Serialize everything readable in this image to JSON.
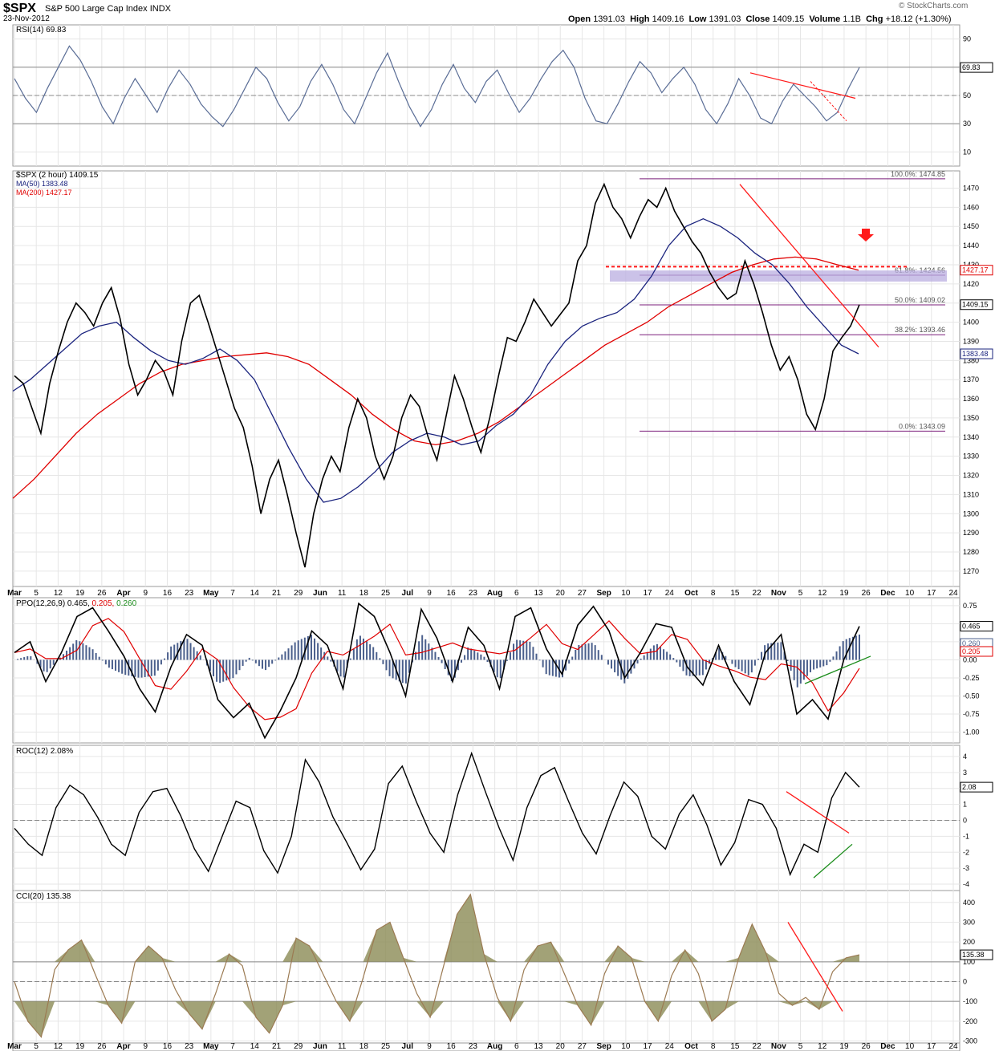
{
  "header": {
    "symbol": "$SPX",
    "name": "S&P 500 Large Cap Index",
    "exchange": "INDX",
    "date": "23-Nov-2012",
    "brand": "© StockCharts.com",
    "ohlc": {
      "open_label": "Open",
      "open": "1391.03",
      "high_label": "High",
      "high": "1409.16",
      "low_label": "Low",
      "low": "1391.03",
      "close_label": "Close",
      "close": "1409.15",
      "volume_label": "Volume",
      "volume": "1.1B",
      "chg_label": "Chg",
      "chg": "+18.12 (+1.30%)"
    }
  },
  "colors": {
    "price": "#000000",
    "ma50": "#1a237e",
    "ma200": "#e00000",
    "rsi": "#5a6d96",
    "fib": "#7b1f7b",
    "fill_band": "#b9aee0",
    "histogram": "#4a5f8c",
    "cci": "#9b7a52",
    "cci_fill": "#8b8b55",
    "trend_red": "#ff1a1a",
    "trend_green": "#1a8c1a",
    "grid": "#e6e6e6"
  },
  "chart_data": [
    {
      "type": "line",
      "panel": "rsi",
      "legend": "RSI(14) 69.83",
      "series": [
        {
          "name": "RSI(14)",
          "last": 69.83,
          "values": [
            62,
            48,
            38,
            55,
            70,
            85,
            75,
            60,
            42,
            30,
            48,
            62,
            50,
            38,
            55,
            68,
            58,
            44,
            35,
            28,
            40,
            55,
            70,
            62,
            45,
            32,
            42,
            60,
            72,
            58,
            40,
            30,
            48,
            66,
            80,
            60,
            42,
            28,
            40,
            58,
            72,
            55,
            45,
            60,
            68,
            52,
            38,
            48,
            62,
            74,
            82,
            70,
            48,
            32,
            30,
            44,
            60,
            74,
            66,
            52,
            62,
            70,
            58,
            40,
            30,
            44,
            62,
            50,
            34,
            30,
            46,
            58,
            50,
            42,
            32,
            38,
            55,
            69.83
          ]
        }
      ],
      "yticks": [
        10,
        30,
        50,
        70,
        90
      ],
      "ylim": [
        0,
        100
      ],
      "guides": [
        30,
        50,
        70
      ]
    },
    {
      "type": "line",
      "panel": "price",
      "legend": [
        "$SPX (2 hour) 1409.15",
        "MA(50) 1383.48",
        "MA(200) 1427.17"
      ],
      "series": [
        {
          "name": "$SPX (2 hour)",
          "last": 1409.15,
          "values": [
            1372,
            1368,
            1355,
            1342,
            1368,
            1385,
            1400,
            1410,
            1405,
            1398,
            1410,
            1418,
            1402,
            1378,
            1362,
            1370,
            1380,
            1374,
            1362,
            1390,
            1410,
            1414,
            1400,
            1385,
            1370,
            1355,
            1345,
            1325,
            1300,
            1318,
            1328,
            1310,
            1290,
            1272,
            1300,
            1318,
            1330,
            1322,
            1345,
            1360,
            1350,
            1330,
            1318,
            1330,
            1350,
            1362,
            1356,
            1340,
            1328,
            1350,
            1372,
            1360,
            1345,
            1332,
            1350,
            1372,
            1392,
            1390,
            1400,
            1412,
            1405,
            1398,
            1404,
            1410,
            1432,
            1440,
            1462,
            1472,
            1460,
            1454,
            1444,
            1455,
            1464,
            1460,
            1470,
            1458,
            1450,
            1442,
            1436,
            1426,
            1418,
            1412,
            1415,
            1432,
            1420,
            1405,
            1388,
            1375,
            1382,
            1370,
            1352,
            1344,
            1360,
            1385,
            1392,
            1398,
            1409.15
          ]
        },
        {
          "name": "MA(50)",
          "last": 1383.48,
          "values": [
            1364,
            1370,
            1378,
            1386,
            1394,
            1398,
            1400,
            1392,
            1385,
            1380,
            1378,
            1381,
            1386,
            1380,
            1370,
            1352,
            1334,
            1318,
            1306,
            1308,
            1314,
            1322,
            1332,
            1338,
            1342,
            1340,
            1336,
            1338,
            1346,
            1352,
            1362,
            1378,
            1390,
            1398,
            1402,
            1405,
            1412,
            1424,
            1440,
            1450,
            1454,
            1450,
            1444,
            1436,
            1430,
            1420,
            1408,
            1398,
            1388,
            1383.48
          ]
        },
        {
          "name": "MA(200)",
          "last": 1427.17,
          "values": [
            1308,
            1318,
            1330,
            1342,
            1352,
            1360,
            1368,
            1374,
            1378,
            1380,
            1382,
            1383,
            1384,
            1382,
            1378,
            1370,
            1362,
            1352,
            1344,
            1338,
            1336,
            1338,
            1342,
            1348,
            1356,
            1364,
            1372,
            1380,
            1388,
            1394,
            1400,
            1408,
            1414,
            1420,
            1426,
            1430,
            1433,
            1434,
            1433,
            1430,
            1427.17
          ]
        }
      ],
      "ylim": [
        1262,
        1479
      ],
      "yticks": [
        1270,
        1280,
        1290,
        1300,
        1310,
        1320,
        1330,
        1340,
        1350,
        1360,
        1370,
        1380,
        1390,
        1400,
        1410,
        1420,
        1430,
        1440,
        1450,
        1460,
        1470
      ],
      "fib_levels": [
        {
          "label": "100.0%: 1474.85",
          "value": 1474.85
        },
        {
          "label": "61.8%: 1424.56",
          "value": 1424.56
        },
        {
          "label": "50.0%: 1409.02",
          "value": 1409.02
        },
        {
          "label": "38.2%: 1393.46",
          "value": 1393.46
        },
        {
          "label": "0.0%: 1343.09",
          "value": 1343.09
        }
      ],
      "resistance_dashed": 1429,
      "last_tags": [
        "1409.15",
        "1427.17",
        "1383.48"
      ]
    },
    {
      "type": "line",
      "panel": "ppo",
      "legend_prefix": "PPO(12,26,9)",
      "legend_values": [
        "0.465",
        "0.205",
        "0.260"
      ],
      "series": [
        {
          "name": "PPO(12,26,9)",
          "last": 0.465,
          "values": [
            0.1,
            0.25,
            -0.3,
            0.1,
            0.6,
            0.72,
            0.4,
            0.05,
            -0.4,
            -0.72,
            -0.1,
            0.35,
            0.2,
            -0.55,
            -0.8,
            -0.6,
            -1.08,
            -0.7,
            -0.25,
            0.4,
            0.2,
            -0.4,
            0.78,
            0.6,
            0.1,
            -0.5,
            0.7,
            0.3,
            -0.3,
            0.45,
            0.2,
            -0.4,
            0.6,
            0.72,
            0.15,
            -0.2,
            0.48,
            0.74,
            0.4,
            -0.25,
            0.1,
            0.5,
            0.45,
            -0.1,
            -0.35,
            0.2,
            -0.3,
            -0.62,
            0.1,
            0.35,
            -0.75,
            -0.55,
            -0.82,
            0.0,
            0.465
          ]
        },
        {
          "name": "signal",
          "last": 0.205
        },
        {
          "name": "histogram",
          "last": 0.26
        }
      ],
      "ylim": [
        -1.15,
        0.86
      ],
      "yticks": [
        -1.0,
        -0.75,
        -0.5,
        -0.25,
        0.0,
        0.25,
        0.5,
        0.75
      ],
      "ytick_labels": [
        "-1.00",
        "-0.75",
        "-0.50",
        "-0.25",
        "0.00",
        "0.25",
        "0.50",
        "0.75"
      ],
      "last_tags": [
        "0.465",
        "0.260",
        "0.205"
      ]
    },
    {
      "type": "line",
      "panel": "roc",
      "legend": "ROC(12) 2.08%",
      "series": [
        {
          "name": "ROC(12)",
          "last": 2.08,
          "values": [
            -0.5,
            -1.5,
            -2.2,
            0.8,
            2.2,
            1.6,
            0.2,
            -1.5,
            -2.2,
            0.5,
            1.8,
            2.0,
            0.3,
            -1.8,
            -3.2,
            -1.0,
            1.2,
            0.8,
            -1.9,
            -3.3,
            -1.0,
            3.8,
            2.4,
            0.2,
            -1.4,
            -3.1,
            -1.8,
            2.3,
            3.4,
            1.2,
            -0.8,
            -2.0,
            1.6,
            4.2,
            1.8,
            -0.5,
            -2.5,
            0.8,
            2.8,
            3.3,
            1.2,
            -0.8,
            -2.1,
            0.3,
            2.4,
            1.5,
            -1.0,
            -1.8,
            0.4,
            1.6,
            -0.3,
            -2.8,
            -1.4,
            1.3,
            1.0,
            -0.5,
            -3.4,
            -1.5,
            -2.0,
            1.4,
            3.0,
            2.08
          ]
        }
      ],
      "ylim": [
        -4.4,
        4.7
      ],
      "yticks": [
        -4,
        -3,
        -2,
        -1,
        0,
        1,
        2,
        3,
        4
      ],
      "last_tags": [
        "2.08"
      ]
    },
    {
      "type": "line",
      "panel": "cci",
      "legend": "CCI(20) 135.38",
      "series": [
        {
          "name": "CCI(20)",
          "last": 135.38,
          "values": [
            0,
            -200,
            -280,
            60,
            160,
            210,
            40,
            -120,
            -210,
            100,
            180,
            120,
            -40,
            -160,
            -240,
            -60,
            140,
            80,
            -180,
            -260,
            -120,
            220,
            180,
            40,
            -100,
            -200,
            20,
            260,
            300,
            120,
            -60,
            -180,
            80,
            340,
            440,
            140,
            -80,
            -200,
            60,
            180,
            200,
            40,
            -120,
            -220,
            40,
            180,
            120,
            -100,
            -200,
            30,
            160,
            40,
            -200,
            -140,
            120,
            290,
            150,
            -60,
            -120,
            -80,
            -140,
            50,
            120,
            135.38
          ]
        }
      ],
      "ylim": [
        -310,
        460
      ],
      "yticks": [
        -300,
        -200,
        -100,
        0,
        100,
        200,
        300,
        400
      ],
      "guides": [
        -100,
        0,
        100
      ],
      "last_tags": [
        "135.38"
      ]
    }
  ],
  "x_axis": {
    "labels": [
      {
        "text": "Mar",
        "bold": true
      },
      {
        "text": "5"
      },
      {
        "text": "12"
      },
      {
        "text": "19"
      },
      {
        "text": "26"
      },
      {
        "text": "Apr",
        "bold": true
      },
      {
        "text": "9"
      },
      {
        "text": "16"
      },
      {
        "text": "23"
      },
      {
        "text": "May",
        "bold": true
      },
      {
        "text": "7"
      },
      {
        "text": "14"
      },
      {
        "text": "21"
      },
      {
        "text": "29"
      },
      {
        "text": "Jun",
        "bold": true
      },
      {
        "text": "11"
      },
      {
        "text": "18"
      },
      {
        "text": "25"
      },
      {
        "text": "Jul",
        "bold": true
      },
      {
        "text": "9"
      },
      {
        "text": "16"
      },
      {
        "text": "23"
      },
      {
        "text": "Aug",
        "bold": true
      },
      {
        "text": "6"
      },
      {
        "text": "13"
      },
      {
        "text": "20"
      },
      {
        "text": "27"
      },
      {
        "text": "Sep",
        "bold": true
      },
      {
        "text": "10"
      },
      {
        "text": "17"
      },
      {
        "text": "24"
      },
      {
        "text": "Oct",
        "bold": true
      },
      {
        "text": "8"
      },
      {
        "text": "15"
      },
      {
        "text": "22"
      },
      {
        "text": "Nov",
        "bold": true
      },
      {
        "text": "5"
      },
      {
        "text": "12"
      },
      {
        "text": "19"
      },
      {
        "text": "26"
      },
      {
        "text": "Dec",
        "bold": true
      },
      {
        "text": "10"
      },
      {
        "text": "17"
      },
      {
        "text": "24"
      }
    ]
  }
}
